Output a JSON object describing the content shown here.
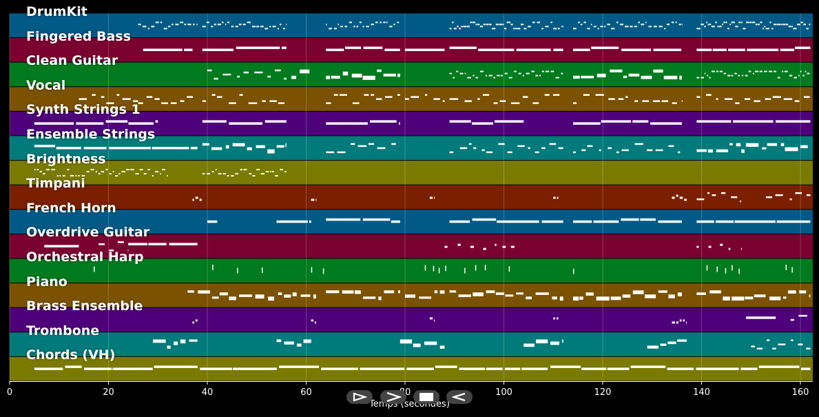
{
  "chart_data": {
    "type": "piano-roll",
    "xlabel": "Temps (secondes)",
    "xlim": [
      0,
      162.5
    ],
    "xticks": [
      0,
      20,
      40,
      60,
      80,
      100,
      120,
      140,
      160
    ],
    "grid": true,
    "tracks": [
      {
        "name": "DrumKit",
        "color": "#005a85",
        "segments": [
          [
            26,
            38,
            "dense"
          ],
          [
            39,
            56,
            "dense"
          ],
          [
            64,
            79,
            "dense"
          ],
          [
            89,
            104,
            "dense-block"
          ],
          [
            104,
            112,
            "dense"
          ],
          [
            114,
            136,
            "dense"
          ],
          [
            139,
            162,
            "dense-block"
          ]
        ]
      },
      {
        "name": "Fingered Bass",
        "color": "#7a0030",
        "segments": [
          [
            27,
            37,
            "line"
          ],
          [
            39,
            56,
            "line"
          ],
          [
            64,
            79,
            "line"
          ],
          [
            80,
            88,
            "line"
          ],
          [
            89,
            112,
            "line"
          ],
          [
            114,
            136,
            "line"
          ],
          [
            139,
            162,
            "line"
          ]
        ]
      },
      {
        "name": "Clean Guitar",
        "color": "#007a1e",
        "segments": [
          [
            40,
            56,
            "sparse"
          ],
          [
            57,
            61,
            "blocks"
          ],
          [
            64,
            79,
            "blocks"
          ],
          [
            89,
            112,
            "dense"
          ],
          [
            114,
            136,
            "blocks"
          ],
          [
            139,
            162,
            "dense"
          ]
        ]
      },
      {
        "name": "Vocal",
        "color": "#7a5200",
        "segments": [
          [
            14,
            26,
            "sparse"
          ],
          [
            26,
            38,
            "sparse"
          ],
          [
            39,
            56,
            "sparse"
          ],
          [
            64,
            79,
            "sparse"
          ],
          [
            80,
            88,
            "sparse"
          ],
          [
            89,
            112,
            "sparse"
          ],
          [
            114,
            136,
            "sparse"
          ],
          [
            139,
            162,
            "sparse"
          ]
        ]
      },
      {
        "name": "Synth Strings 1",
        "color": "#4e007a",
        "segments": [
          [
            5,
            30,
            "line"
          ],
          [
            39,
            56,
            "line"
          ],
          [
            64,
            79,
            "line"
          ],
          [
            89,
            104,
            "line"
          ],
          [
            114,
            136,
            "line"
          ],
          [
            139,
            162,
            "line"
          ]
        ]
      },
      {
        "name": "Ensemble Strings",
        "color": "#007a7a",
        "segments": [
          [
            5,
            38,
            "line"
          ],
          [
            39,
            56,
            "blocks"
          ],
          [
            64,
            79,
            "sparse"
          ],
          [
            89,
            112,
            "sparse"
          ],
          [
            114,
            136,
            "sparse"
          ],
          [
            139,
            162,
            "blocks"
          ]
        ]
      },
      {
        "name": "Brightness",
        "color": "#7a7a00",
        "segments": [
          [
            5,
            32,
            "dense"
          ],
          [
            39,
            56,
            "dense"
          ]
        ]
      },
      {
        "name": "Timpani",
        "color": "#7a2000",
        "segments": [
          [
            37,
            39,
            "dot"
          ],
          [
            61,
            62,
            "dot"
          ],
          [
            85,
            86,
            "dot"
          ],
          [
            110,
            111,
            "dot"
          ],
          [
            134,
            137,
            "dot"
          ],
          [
            139,
            148,
            "sparse"
          ],
          [
            153,
            162,
            "sparse"
          ]
        ]
      },
      {
        "name": "French Horn",
        "color": "#005a85",
        "segments": [
          [
            40,
            42,
            "line"
          ],
          [
            54,
            61,
            "line"
          ],
          [
            64,
            79,
            "line"
          ],
          [
            89,
            112,
            "line"
          ],
          [
            114,
            136,
            "line"
          ],
          [
            139,
            162,
            "line"
          ]
        ]
      },
      {
        "name": "Overdrive Guitar",
        "color": "#7a0030",
        "segments": [
          [
            7,
            14,
            "line"
          ],
          [
            18,
            24,
            "sparse"
          ],
          [
            24,
            38,
            "line"
          ],
          [
            88,
            103,
            "dots"
          ],
          [
            139,
            148,
            "dots"
          ]
        ]
      },
      {
        "name": "Orchestral Harp",
        "color": "#007a1e",
        "segments": [
          [
            17,
            18,
            "tick"
          ],
          [
            41,
            42,
            "tick"
          ],
          [
            46,
            47,
            "tick"
          ],
          [
            51,
            52,
            "tick"
          ],
          [
            61,
            64,
            "tick"
          ],
          [
            84,
            89,
            "tick"
          ],
          [
            92,
            97,
            "tick"
          ],
          [
            101,
            102,
            "tick"
          ],
          [
            114,
            115,
            "tick"
          ],
          [
            141,
            149,
            "tick"
          ],
          [
            157,
            160,
            "tick"
          ]
        ]
      },
      {
        "name": "Piano",
        "color": "#7a5200",
        "segments": [
          [
            36,
            62,
            "blocks"
          ],
          [
            64,
            79,
            "blocks"
          ],
          [
            80,
            88,
            "blocks"
          ],
          [
            89,
            112,
            "blocks"
          ],
          [
            114,
            136,
            "blocks"
          ],
          [
            139,
            162,
            "blocks"
          ]
        ]
      },
      {
        "name": "Brass Ensemble",
        "color": "#4e007a",
        "segments": [
          [
            37,
            38,
            "dot"
          ],
          [
            61,
            62,
            "dot"
          ],
          [
            85,
            86,
            "dot"
          ],
          [
            110,
            111,
            "dot"
          ],
          [
            134,
            137,
            "dot"
          ],
          [
            149,
            155,
            "line"
          ],
          [
            158,
            162,
            "sparse"
          ]
        ]
      },
      {
        "name": "Trombone",
        "color": "#007a7a",
        "segments": [
          [
            29,
            38,
            "blocks"
          ],
          [
            54,
            61,
            "blocks"
          ],
          [
            79,
            88,
            "blocks"
          ],
          [
            104,
            112,
            "blocks"
          ],
          [
            129,
            137,
            "blocks"
          ],
          [
            150,
            162,
            "sparse"
          ]
        ]
      },
      {
        "name": "Chords (VH)",
        "color": "#7a7a00",
        "segments": [
          [
            5,
            162,
            "line"
          ]
        ]
      }
    ]
  },
  "controls": [
    {
      "icon": "play-outline-icon",
      "label": "play"
    },
    {
      "icon": "forward-icon",
      "label": "forward"
    },
    {
      "icon": "stop-icon",
      "label": "stop"
    },
    {
      "icon": "rewind-icon",
      "label": "rewind"
    }
  ]
}
